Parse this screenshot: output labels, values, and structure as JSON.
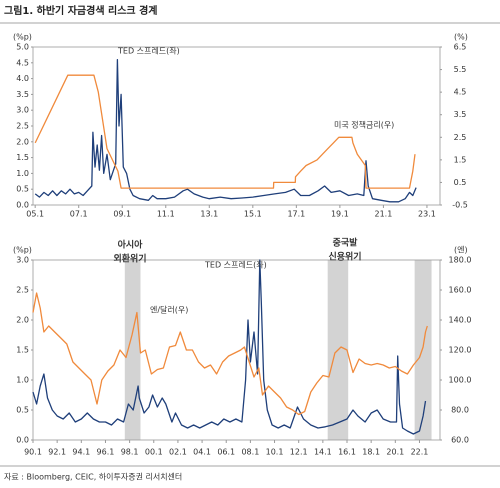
{
  "title": "그림1. 하반기 자금경색 리스크 경계",
  "source": "자료 : Bloomberg, CEIC, 하이투자증권 리서치센터",
  "chart_data": [
    {
      "type": "line",
      "y_unit": "(%p)",
      "y2_unit": "(%)",
      "xlim": [
        2004.9,
        2023.6
      ],
      "xticks": [
        {
          "value": 2005,
          "label": "05.1"
        },
        {
          "value": 2007,
          "label": "07.1"
        },
        {
          "value": 2009,
          "label": "09.1"
        },
        {
          "value": 2011,
          "label": "11.1"
        },
        {
          "value": 2013,
          "label": "13.1"
        },
        {
          "value": 2015,
          "label": "15.1"
        },
        {
          "value": 2017,
          "label": "17.1"
        },
        {
          "value": 2019,
          "label": "19.1"
        },
        {
          "value": 2021,
          "label": "21.1"
        },
        {
          "value": 2023,
          "label": "23.1"
        }
      ],
      "ylim": [
        0,
        5
      ],
      "yticks": [
        {
          "value": 0,
          "label": "0.0"
        },
        0.5,
        {
          "value": 1,
          "label": "1.0"
        },
        1.5,
        {
          "value": 2,
          "label": "2.0"
        },
        2.5,
        {
          "value": 3,
          "label": "3.0"
        },
        3.5,
        {
          "value": 4,
          "label": "4.0"
        },
        4.5,
        {
          "value": 5,
          "label": "5.0"
        }
      ],
      "y2lim": [
        -0.5,
        6.5
      ],
      "y2ticks": [
        -0.5,
        0.5,
        1.5,
        2.5,
        3.5,
        4.5,
        5.5,
        6.5
      ],
      "annotations": [],
      "series": [
        {
          "name": "TED 스프레드(좌)",
          "color": "#1f3f7a",
          "x": [
            2005.0,
            2005.2,
            2005.4,
            2005.6,
            2005.8,
            2006.0,
            2006.2,
            2006.4,
            2006.6,
            2006.8,
            2007.0,
            2007.2,
            2007.4,
            2007.6,
            2007.65,
            2007.75,
            2007.85,
            2007.95,
            2008.05,
            2008.15,
            2008.3,
            2008.45,
            2008.6,
            2008.7,
            2008.78,
            2008.85,
            2008.95,
            2009.05,
            2009.2,
            2009.35,
            2009.5,
            2009.8,
            2010.2,
            2010.4,
            2010.6,
            2011.0,
            2011.4,
            2011.8,
            2012.0,
            2012.3,
            2012.7,
            2013.0,
            2013.5,
            2014.0,
            2014.5,
            2015.0,
            2015.5,
            2016.0,
            2016.5,
            2016.9,
            2017.2,
            2017.6,
            2018.0,
            2018.3,
            2018.6,
            2019.0,
            2019.4,
            2019.8,
            2020.1,
            2020.2,
            2020.3,
            2020.5,
            2020.9,
            2021.3,
            2021.7,
            2022.0,
            2022.2,
            2022.35,
            2022.5
          ],
          "values": [
            0.35,
            0.25,
            0.4,
            0.3,
            0.45,
            0.3,
            0.45,
            0.35,
            0.5,
            0.35,
            0.4,
            0.3,
            0.45,
            0.6,
            2.3,
            1.2,
            1.9,
            1.1,
            2.2,
            1.0,
            1.6,
            0.8,
            1.1,
            1.3,
            4.6,
            2.5,
            3.5,
            1.2,
            1.0,
            0.5,
            0.3,
            0.2,
            0.15,
            0.3,
            0.2,
            0.2,
            0.25,
            0.45,
            0.5,
            0.35,
            0.25,
            0.2,
            0.25,
            0.2,
            0.22,
            0.25,
            0.3,
            0.35,
            0.4,
            0.5,
            0.3,
            0.3,
            0.45,
            0.6,
            0.4,
            0.45,
            0.3,
            0.35,
            0.3,
            1.4,
            0.6,
            0.2,
            0.15,
            0.1,
            0.1,
            0.2,
            0.4,
            0.3,
            0.55
          ]
        },
        {
          "name": "미국 정책금리(우)",
          "color": "#f08a3c",
          "axis": "y2",
          "x": [
            2005.0,
            2006.5,
            2007.7,
            2007.9,
            2008.3,
            2008.8,
            2008.95,
            2015.95,
            2015.96,
            2016.95,
            2016.96,
            2017.2,
            2017.45,
            2017.95,
            2018.2,
            2018.45,
            2018.7,
            2018.95,
            2019.55,
            2019.6,
            2019.7,
            2019.8,
            2020.17,
            2020.2,
            2022.2,
            2022.25,
            2022.35,
            2022.45
          ],
          "values": [
            2.25,
            5.25,
            5.25,
            4.5,
            2.0,
            1.0,
            0.25,
            0.25,
            0.5,
            0.5,
            0.75,
            1.0,
            1.25,
            1.5,
            1.75,
            2.0,
            2.25,
            2.5,
            2.5,
            2.25,
            2.0,
            1.75,
            1.25,
            0.25,
            0.25,
            0.5,
            1.0,
            1.75
          ]
        }
      ]
    },
    {
      "type": "line",
      "y_unit": "(%p)",
      "y2_unit": "(엔)",
      "xlim": [
        1990,
        2023.7
      ],
      "xticks": [
        {
          "value": 1990,
          "label": "90.1"
        },
        {
          "value": 1992,
          "label": "92.1"
        },
        {
          "value": 1994,
          "label": "94.1"
        },
        {
          "value": 1996,
          "label": "96.1"
        },
        {
          "value": 1998,
          "label": "98.1"
        },
        {
          "value": 2000,
          "label": "00.1"
        },
        {
          "value": 2002,
          "label": "02.1"
        },
        {
          "value": 2004,
          "label": "04.1"
        },
        {
          "value": 2006,
          "label": "06.1"
        },
        {
          "value": 2008,
          "label": "08.1"
        },
        {
          "value": 2010,
          "label": "10.1"
        },
        {
          "value": 2012,
          "label": "12.1"
        },
        {
          "value": 2014,
          "label": "14.1"
        },
        {
          "value": 2016,
          "label": "16.1"
        },
        {
          "value": 2018,
          "label": "18.1"
        },
        {
          "value": 2020,
          "label": "20.1"
        },
        {
          "value": 2022,
          "label": "22.1"
        }
      ],
      "ylim": [
        0,
        3
      ],
      "yticks": [
        {
          "value": 0,
          "label": "0.0"
        },
        0.5,
        {
          "value": 1,
          "label": "1.0"
        },
        1.5,
        {
          "value": 2,
          "label": "2.0"
        },
        2.5,
        {
          "value": 3,
          "label": "3.0"
        }
      ],
      "y2lim": [
        60,
        180
      ],
      "y2ticks": [
        {
          "value": 60,
          "label": "60.0"
        },
        {
          "value": 80,
          "label": "80.0"
        },
        {
          "value": 100,
          "label": "100.0"
        },
        {
          "value": 120,
          "label": "120.0"
        },
        {
          "value": 140,
          "label": "140.0"
        },
        {
          "value": 160,
          "label": "160.0"
        },
        {
          "value": 180,
          "label": "180.0"
        }
      ],
      "shaded_periods": [
        [
          1997.6,
          1998.9
        ],
        [
          2014.4,
          2016.1
        ],
        [
          2021.6,
          2023.0
        ]
      ],
      "annotations": [
        "아시아",
        "외환위기",
        "중국발",
        "신용위기"
      ],
      "series": [
        {
          "name": "TED 스프레드(좌)",
          "color": "#1f3f7a",
          "x": [
            1990.0,
            1990.3,
            1990.6,
            1990.9,
            1991.2,
            1991.6,
            1992.0,
            1992.5,
            1993.0,
            1993.5,
            1994.0,
            1994.5,
            1995.0,
            1995.5,
            1996.0,
            1996.5,
            1997.0,
            1997.5,
            1997.9,
            1998.3,
            1998.7,
            1998.8,
            1999.2,
            1999.6,
            1999.9,
            2000.3,
            2000.7,
            2001.0,
            2001.5,
            2001.8,
            2002.3,
            2002.8,
            2003.3,
            2003.8,
            2004.3,
            2004.8,
            2005.3,
            2005.8,
            2006.3,
            2006.8,
            2007.3,
            2007.6,
            2007.8,
            2008.0,
            2008.3,
            2008.6,
            2008.78,
            2008.9,
            2009.1,
            2009.4,
            2009.8,
            2010.3,
            2010.8,
            2011.3,
            2011.9,
            2012.4,
            2013.0,
            2013.6,
            2014.2,
            2014.8,
            2015.4,
            2016.0,
            2016.5,
            2016.9,
            2017.5,
            2018.0,
            2018.5,
            2019.0,
            2019.6,
            2020.1,
            2020.2,
            2020.35,
            2020.6,
            2021.0,
            2021.5,
            2022.0,
            2022.3,
            2022.5
          ],
          "values": [
            0.8,
            0.6,
            0.9,
            1.1,
            0.7,
            0.5,
            0.4,
            0.35,
            0.45,
            0.3,
            0.35,
            0.45,
            0.35,
            0.3,
            0.3,
            0.25,
            0.35,
            0.3,
            0.6,
            0.5,
            0.9,
            0.7,
            0.45,
            0.55,
            0.75,
            0.55,
            0.7,
            0.6,
            0.3,
            0.45,
            0.25,
            0.2,
            0.25,
            0.2,
            0.25,
            0.3,
            0.25,
            0.35,
            0.3,
            0.35,
            0.3,
            1.0,
            2.0,
            1.3,
            1.8,
            1.1,
            3.0,
            2.3,
            1.0,
            0.5,
            0.25,
            0.2,
            0.25,
            0.2,
            0.55,
            0.35,
            0.25,
            0.2,
            0.22,
            0.25,
            0.3,
            0.35,
            0.5,
            0.4,
            0.3,
            0.45,
            0.5,
            0.35,
            0.3,
            0.3,
            1.4,
            0.6,
            0.2,
            0.15,
            0.1,
            0.15,
            0.4,
            0.65
          ]
        },
        {
          "name": "엔/달러(우)",
          "color": "#f08a3c",
          "axis": "y2",
          "x": [
            1990.0,
            1990.3,
            1990.6,
            1990.9,
            1991.3,
            1991.8,
            1992.3,
            1992.8,
            1993.3,
            1993.8,
            1994.3,
            1994.8,
            1995.3,
            1995.7,
            1996.2,
            1996.7,
            1997.2,
            1997.7,
            1998.2,
            1998.6,
            1998.9,
            1999.3,
            1999.8,
            2000.3,
            2000.8,
            2001.3,
            2001.8,
            2002.2,
            2002.7,
            2003.2,
            2003.7,
            2004.2,
            2004.7,
            2005.2,
            2005.7,
            2006.2,
            2006.7,
            2007.2,
            2007.5,
            2007.9,
            2008.3,
            2008.7,
            2009.0,
            2009.5,
            2010.0,
            2010.5,
            2011.0,
            2011.5,
            2012.0,
            2012.5,
            2013.0,
            2013.5,
            2014.0,
            2014.5,
            2015.0,
            2015.5,
            2016.0,
            2016.5,
            2017.0,
            2017.5,
            2018.0,
            2018.5,
            2019.0,
            2019.5,
            2020.0,
            2020.5,
            2021.0,
            2021.5,
            2022.0,
            2022.3,
            2022.5,
            2022.65
          ],
          "values": [
            145,
            158,
            148,
            132,
            136,
            132,
            128,
            124,
            112,
            108,
            104,
            100,
            84,
            100,
            106,
            110,
            120,
            115,
            130,
            145,
            118,
            120,
            104,
            107,
            108,
            122,
            123,
            132,
            120,
            120,
            112,
            108,
            110,
            104,
            112,
            116,
            118,
            120,
            122,
            112,
            102,
            108,
            90,
            96,
            92,
            88,
            82,
            80,
            77,
            79,
            92,
            98,
            103,
            102,
            118,
            122,
            120,
            105,
            114,
            111,
            110,
            111,
            110,
            108,
            109,
            106,
            104,
            110,
            115,
            122,
            132,
            136
          ]
        }
      ]
    }
  ]
}
